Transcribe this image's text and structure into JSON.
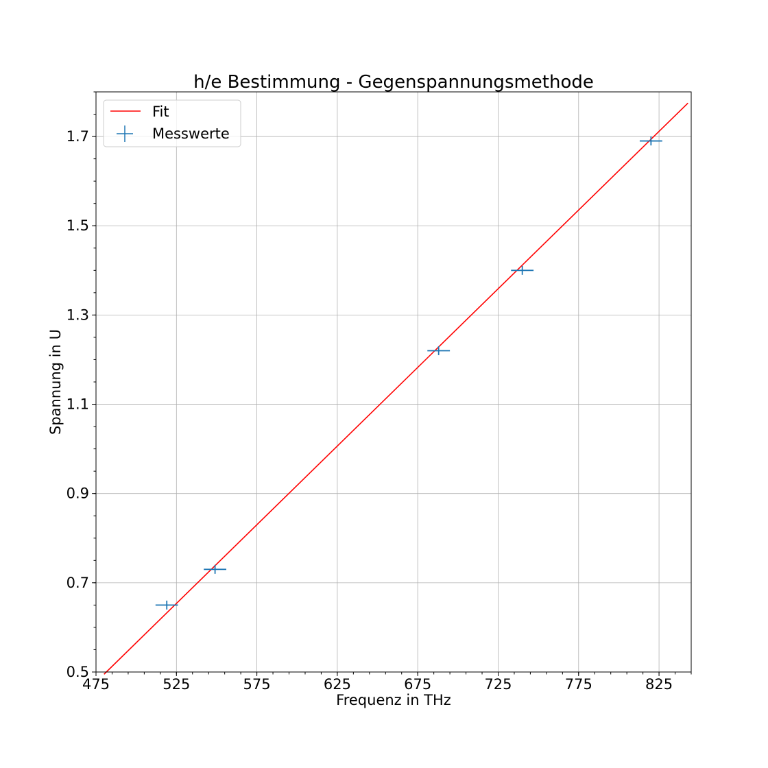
{
  "chart_data": {
    "type": "scatter",
    "title": "h/e Bestimmung - Gegenspannungsmethode",
    "xlabel": "Frequenz in THz",
    "ylabel": "Spannung in U",
    "xlim": [
      475,
      845
    ],
    "ylim": [
      0.5,
      1.8
    ],
    "x_ticks": [
      475,
      525,
      575,
      625,
      675,
      725,
      775,
      825
    ],
    "y_ticks": [
      0.5,
      0.7,
      0.9,
      1.1,
      1.3,
      1.5,
      1.7
    ],
    "x_tick_labels": [
      "475",
      "525",
      "575",
      "625",
      "675",
      "725",
      "775",
      "825"
    ],
    "y_tick_labels": [
      "0.5",
      "0.7",
      "0.9",
      "1.1",
      "1.3",
      "1.5",
      "1.7"
    ],
    "grid": true,
    "legend_position": "top-left",
    "series": [
      {
        "name": "Messwerte",
        "kind": "errorbar",
        "color": "#1f77b4",
        "x": [
          519,
          549,
          688,
          740,
          820
        ],
        "y": [
          0.65,
          0.73,
          1.22,
          1.4,
          1.69
        ],
        "xerr": [
          7,
          7,
          7,
          7,
          7
        ],
        "yerr": [
          0.01,
          0.01,
          0.01,
          0.01,
          0.01
        ]
      },
      {
        "name": "Fit",
        "kind": "line",
        "color": "#ff0000",
        "x": [
          480,
          843
        ],
        "y": [
          0.495,
          1.775
        ]
      }
    ]
  }
}
